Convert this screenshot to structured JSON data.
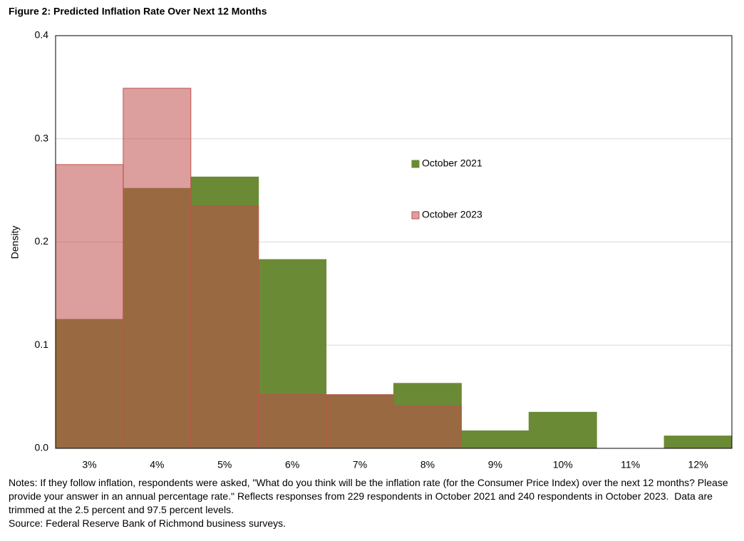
{
  "chart_data": {
    "type": "bar",
    "title": "Figure 2: Predicted Inflation Rate Over Next 12 Months",
    "y_label": "Density",
    "categories": [
      "3%",
      "4%",
      "5%",
      "6%",
      "7%",
      "8%",
      "9%",
      "10%",
      "11%",
      "12%"
    ],
    "series": [
      {
        "name": "October 2021",
        "color": "#6a8a35",
        "alpha": 1,
        "values": [
          0.125,
          0.252,
          0.263,
          0.183,
          0.052,
          0.063,
          0.017,
          0.035,
          0,
          0.012
        ]
      },
      {
        "name": "October 2023",
        "color": "#c0504d",
        "alpha": 0.55,
        "values": [
          0.275,
          0.349,
          0.235,
          0.052,
          0.052,
          0.041,
          0,
          0,
          0,
          0
        ]
      }
    ],
    "ylim": [
      0,
      0.4
    ],
    "yticks": [
      {
        "value": 0,
        "label": "0.0"
      },
      0.1,
      0.2,
      0.3,
      0.4
    ],
    "grid": true,
    "legend": "center",
    "notes": "Notes: If they follow inflation, respondents were asked, \"What do you think will be the inflation rate (for the Consumer Price Index) over the next 12 months? Please provide your answer in an annual percentage rate.\" Reflects responses from 229 respondents in October 2021 and 240 respondents in October 2023.  Data are trimmed at the 2.5 percent and 97.5 percent levels.",
    "source": "Source: Federal Reserve Bank of Richmond business surveys."
  }
}
